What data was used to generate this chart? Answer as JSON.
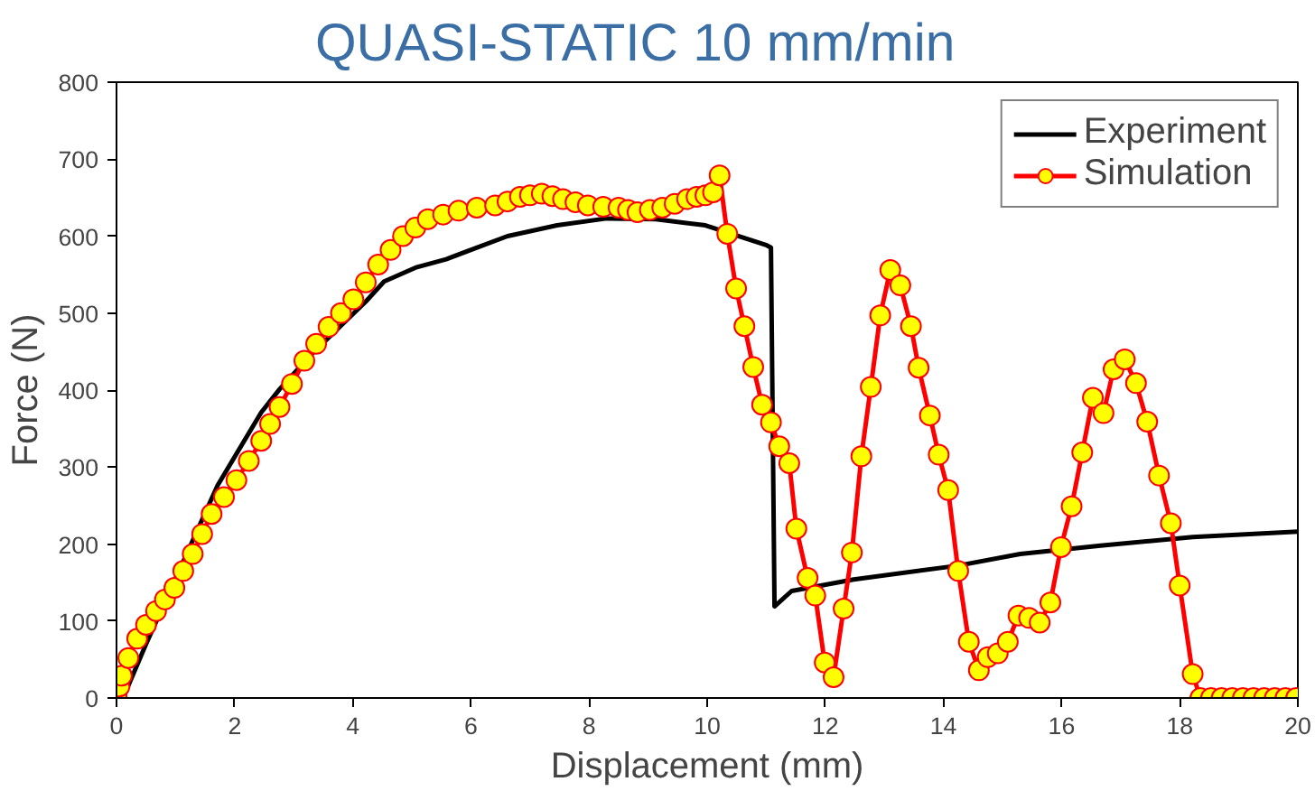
{
  "chart_data": {
    "type": "line",
    "title": "QUASI-STATIC 10 mm/min",
    "xlabel": "Displacement (mm)",
    "ylabel": "Force (N)",
    "xlim": [
      0,
      20
    ],
    "ylim": [
      0,
      800
    ],
    "xticks": [
      0,
      2,
      4,
      6,
      8,
      10,
      12,
      14,
      16,
      18,
      20
    ],
    "yticks": [
      0,
      100,
      200,
      300,
      400,
      500,
      600,
      700,
      800
    ],
    "grid": false,
    "legend": "top right",
    "line_style": "solid",
    "series": [
      {
        "name": "Experiment",
        "color": "#000000",
        "marker": "none",
        "x": [
          0,
          0.15,
          0.5,
          1.71,
          2.45,
          2.76,
          3.28,
          4.22,
          4.53,
          5.06,
          5.58,
          6.62,
          7.46,
          8.3,
          9.13,
          9.97,
          11.01,
          11.08,
          11.14,
          11.43,
          12.48,
          14.25,
          15.3,
          16.66,
          18.22,
          20
        ],
        "values": [
          0,
          7,
          70,
          276,
          371,
          401,
          445,
          515,
          541,
          559,
          570,
          600,
          614,
          623,
          622,
          614,
          588,
          585,
          119,
          139,
          154,
          172,
          187,
          198,
          209,
          216
        ]
      },
      {
        "name": "Simulation",
        "color": "#ff0000",
        "marker": "circle",
        "x": [
          0,
          0.05,
          0.09,
          0.2,
          0.35,
          0.5,
          0.67,
          0.82,
          0.98,
          1.13,
          1.29,
          1.45,
          1.61,
          1.82,
          2.03,
          2.24,
          2.45,
          2.6,
          2.76,
          2.97,
          3.18,
          3.38,
          3.59,
          3.8,
          4.01,
          4.22,
          4.43,
          4.64,
          4.85,
          5.06,
          5.27,
          5.53,
          5.79,
          6.1,
          6.41,
          6.62,
          6.83,
          7.0,
          7.2,
          7.38,
          7.56,
          7.77,
          7.98,
          8.24,
          8.5,
          8.66,
          8.82,
          9.03,
          9.24,
          9.45,
          9.66,
          9.82,
          9.97,
          10.1,
          10.21,
          10.34,
          10.49,
          10.63,
          10.78,
          10.93,
          11.08,
          11.22,
          11.39,
          11.51,
          11.7,
          11.83,
          11.99,
          12.14,
          12.31,
          12.45,
          12.61,
          12.77,
          12.93,
          13.1,
          13.27,
          13.45,
          13.58,
          13.77,
          13.92,
          14.08,
          14.25,
          14.43,
          14.6,
          14.75,
          14.92,
          15.09,
          15.27,
          15.45,
          15.63,
          15.81,
          15.99,
          16.17,
          16.35,
          16.53,
          16.71,
          16.88,
          17.07,
          17.26,
          17.45,
          17.65,
          17.85,
          18.0,
          18.22,
          18.35,
          18.53,
          18.71,
          18.89,
          19.07,
          19.25,
          19.43,
          19.61,
          19.79,
          19.97
        ],
        "values": [
          3,
          15,
          29,
          52,
          77,
          95,
          113,
          128,
          143,
          165,
          187,
          213,
          239,
          261,
          283,
          308,
          334,
          356,
          378,
          408,
          438,
          460,
          482,
          500,
          518,
          540,
          563,
          582,
          600,
          611,
          622,
          628,
          633,
          637,
          640,
          645,
          651,
          653,
          655,
          652,
          648,
          644,
          640,
          638,
          637,
          634,
          631,
          634,
          637,
          642,
          648,
          651,
          653,
          657,
          679,
          603,
          532,
          483,
          430,
          381,
          358,
          327,
          305,
          220,
          156,
          133,
          46,
          27,
          116,
          189,
          314,
          404,
          497,
          556,
          536,
          483,
          429,
          367,
          316,
          270,
          165,
          73,
          36,
          53,
          58,
          73,
          107,
          104,
          98,
          124,
          196,
          249,
          319,
          390,
          370,
          427,
          440,
          409,
          359,
          289,
          227,
          146,
          31,
          0,
          0,
          0,
          0,
          0,
          0,
          0,
          0,
          0,
          0
        ]
      }
    ]
  }
}
